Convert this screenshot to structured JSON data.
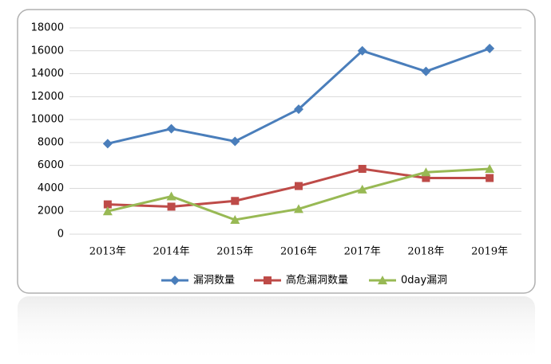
{
  "chart_data": {
    "type": "line",
    "categories": [
      "2013年",
      "2014年",
      "2015年",
      "2016年",
      "2017年",
      "2018年",
      "2019年"
    ],
    "series": [
      {
        "name": "漏洞数量",
        "color": "#4a7ebb",
        "marker": "diamond",
        "values": [
          7900,
          9200,
          8100,
          10900,
          16000,
          14200,
          16200
        ]
      },
      {
        "name": "高危漏洞数量",
        "color": "#be4b48",
        "marker": "square",
        "values": [
          2600,
          2400,
          2900,
          4200,
          5700,
          4900,
          4900
        ]
      },
      {
        "name": "0day漏洞",
        "color": "#98b954",
        "marker": "triangle",
        "values": [
          2000,
          3300,
          1250,
          2200,
          3900,
          5400,
          5700
        ]
      }
    ],
    "ylim": [
      0,
      18000
    ],
    "yticks": [
      0,
      2000,
      4000,
      6000,
      8000,
      10000,
      12000,
      14000,
      16000,
      18000
    ],
    "grid": true,
    "legend": "bottom"
  }
}
